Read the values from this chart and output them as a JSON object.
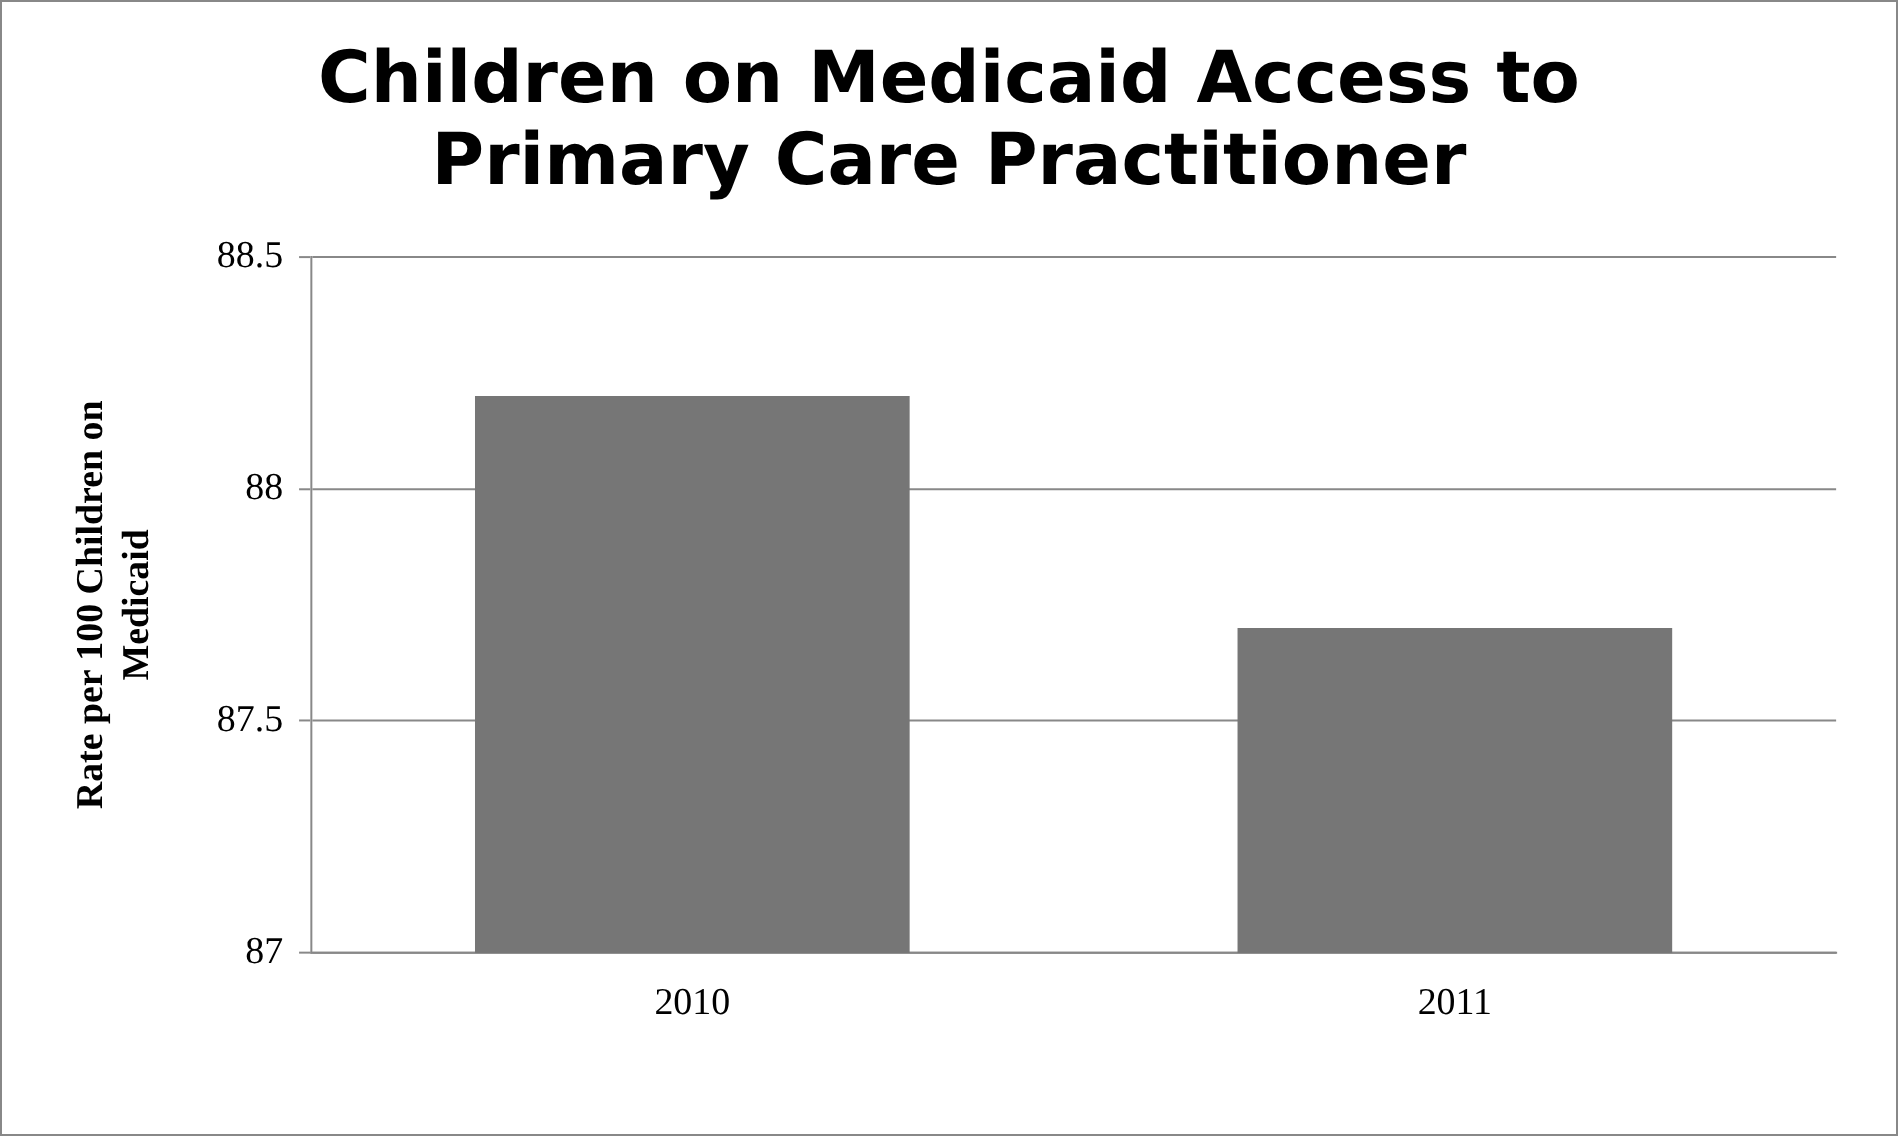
{
  "chart_data": {
    "type": "bar",
    "title": "Children on Medicaid Access to Primary Care Practitioner",
    "ylabel": "Rate per 100  Children on Medicaid",
    "categories": [
      "2010",
      "2011"
    ],
    "values": [
      88.2,
      87.7
    ],
    "color": "#767676",
    "ylim": [
      87,
      88.5
    ],
    "yticks": [
      {
        "value": 87,
        "label": "87"
      },
      {
        "value": 87.5,
        "label": "87.5"
      },
      {
        "value": 88,
        "label": "88"
      },
      {
        "value": 88.5,
        "label": "88.5"
      }
    ],
    "grid": "y",
    "legend": false
  }
}
